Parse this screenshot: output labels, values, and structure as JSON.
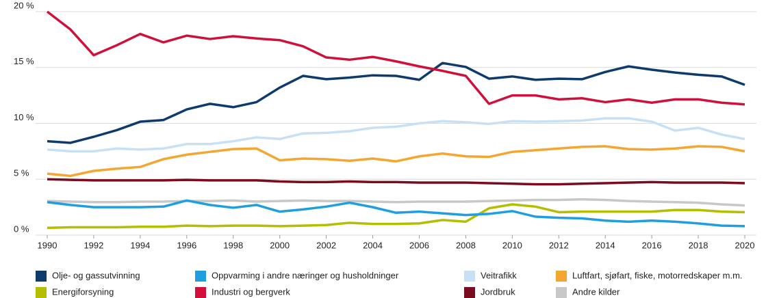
{
  "chart_data": {
    "type": "line",
    "x": [
      1990,
      1991,
      1992,
      1993,
      1994,
      1995,
      1996,
      1997,
      1998,
      1999,
      2000,
      2001,
      2002,
      2003,
      2004,
      2005,
      2006,
      2007,
      2008,
      2009,
      2010,
      2011,
      2012,
      2013,
      2014,
      2015,
      2016,
      2017,
      2018,
      2019,
      2020
    ],
    "xlim": [
      1989.5,
      2020.5
    ],
    "xticks": [
      1990,
      1992,
      1994,
      1996,
      1998,
      2000,
      2002,
      2004,
      2006,
      2008,
      2010,
      2012,
      2014,
      2016,
      2018,
      2020
    ],
    "ylim": [
      0,
      20
    ],
    "yticks": [
      {
        "value": 0,
        "label": "0 %"
      },
      {
        "value": 5,
        "label": "5 %"
      },
      {
        "value": 10,
        "label": "10 %"
      },
      {
        "value": 15,
        "label": "15 %"
      },
      {
        "value": 20,
        "label": "20 %"
      }
    ],
    "grid": true,
    "legend": "bottom",
    "series": [
      {
        "name": "Olje- og gassutvinning",
        "color": "#0e3a6e",
        "values": [
          8.4,
          8.26,
          8.8,
          9.4,
          10.15,
          10.3,
          11.25,
          11.75,
          11.45,
          11.9,
          13.2,
          14.25,
          13.95,
          14.1,
          14.3,
          14.25,
          13.9,
          15.4,
          15.05,
          14.0,
          14.2,
          13.9,
          14.0,
          13.95,
          14.6,
          15.1,
          14.8,
          14.55,
          14.35,
          14.2,
          13.45
        ]
      },
      {
        "name": "Oppvarming i andre næringer og husholdninger",
        "color": "#1f9fdf",
        "values": [
          2.95,
          2.7,
          2.5,
          2.5,
          2.5,
          2.55,
          3.1,
          2.7,
          2.45,
          2.7,
          2.1,
          2.3,
          2.55,
          2.9,
          2.5,
          2.0,
          2.1,
          1.95,
          1.8,
          1.9,
          2.15,
          1.65,
          1.55,
          1.5,
          1.3,
          1.2,
          1.3,
          1.2,
          1.05,
          0.85,
          0.8
        ]
      },
      {
        "name": "Veitrafikk",
        "color": "#c8e0f4",
        "values": [
          7.65,
          7.5,
          7.5,
          7.75,
          7.65,
          7.75,
          8.15,
          8.15,
          8.4,
          8.75,
          8.6,
          9.1,
          9.15,
          9.3,
          9.6,
          9.7,
          10.0,
          10.2,
          10.1,
          9.95,
          10.2,
          10.15,
          10.2,
          10.25,
          10.45,
          10.45,
          10.15,
          9.35,
          9.6,
          9.0,
          8.6
        ]
      },
      {
        "name": "Luftfart, sjøfart, fiske, motorredskaper m.m.",
        "color": "#f5a631",
        "values": [
          5.5,
          5.3,
          5.75,
          5.95,
          6.1,
          6.8,
          7.2,
          7.45,
          7.7,
          7.75,
          6.7,
          6.85,
          6.8,
          6.65,
          6.85,
          6.6,
          7.05,
          7.3,
          7.05,
          7.0,
          7.45,
          7.6,
          7.75,
          7.9,
          7.95,
          7.7,
          7.65,
          7.75,
          7.95,
          7.9,
          7.5
        ]
      },
      {
        "name": "Energiforsyning",
        "color": "#b5be00",
        "values": [
          0.65,
          0.7,
          0.7,
          0.7,
          0.75,
          0.75,
          0.85,
          0.8,
          0.85,
          0.85,
          0.8,
          0.85,
          0.9,
          1.1,
          1.0,
          1.0,
          1.05,
          1.35,
          1.2,
          2.4,
          2.75,
          2.55,
          2.05,
          2.1,
          2.1,
          2.1,
          2.1,
          2.25,
          2.25,
          2.1,
          2.05
        ]
      },
      {
        "name": "Industri og bergverk",
        "color": "#d0103a",
        "values": [
          20.0,
          18.4,
          16.1,
          17.0,
          18.0,
          17.25,
          17.85,
          17.55,
          17.8,
          17.6,
          17.45,
          16.9,
          15.9,
          15.7,
          15.95,
          15.55,
          15.1,
          14.7,
          14.25,
          11.75,
          12.5,
          12.5,
          12.15,
          12.25,
          11.9,
          12.15,
          11.85,
          12.15,
          12.15,
          11.85,
          11.7
        ]
      },
      {
        "name": "Jordbruk",
        "color": "#7a0c1f",
        "values": [
          5.0,
          4.95,
          4.9,
          4.9,
          4.9,
          4.9,
          4.95,
          4.9,
          4.9,
          4.9,
          4.8,
          4.75,
          4.75,
          4.8,
          4.75,
          4.75,
          4.7,
          4.7,
          4.7,
          4.65,
          4.6,
          4.55,
          4.55,
          4.6,
          4.65,
          4.7,
          4.75,
          4.7,
          4.7,
          4.7,
          4.65
        ]
      },
      {
        "name": "Andre kilder",
        "color": "#c8c8c8",
        "values": [
          3.05,
          3.0,
          2.95,
          2.95,
          3.0,
          3.0,
          3.05,
          3.05,
          3.1,
          3.0,
          3.05,
          3.1,
          3.05,
          3.05,
          3.0,
          2.95,
          3.0,
          3.0,
          3.0,
          3.05,
          3.1,
          3.15,
          3.15,
          3.2,
          3.15,
          3.05,
          3.0,
          2.95,
          2.9,
          2.75,
          2.65
        ]
      }
    ]
  }
}
